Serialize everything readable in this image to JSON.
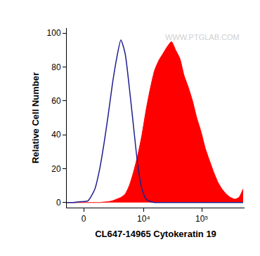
{
  "chart_data": {
    "type": "line",
    "xlabel": "CL647-14965 Cytokeratin 19",
    "ylabel": "Relative Cell Number",
    "annotations": [
      "WWW.PTGLAB.COM"
    ],
    "x": [
      -1360,
      -756,
      -211,
      317,
      870,
      1290,
      1700,
      2150,
      2650,
      3230,
      3900,
      4690,
      5590,
      6650,
      7920,
      9370,
      11100,
      13200,
      15500,
      18400,
      21700,
      25600,
      30300,
      35700,
      42200,
      49800,
      58900,
      69500,
      82100,
      96900,
      115000,
      135000,
      160000,
      189000,
      222000,
      263000,
      310000,
      367000,
      433000,
      511000
    ],
    "series": [
      {
        "type": "area",
        "color": "#ff0000",
        "values": [
          0,
          0,
          0,
          0,
          0,
          0,
          0.3,
          0.5,
          1,
          2,
          3,
          5,
          10,
          18,
          28,
          40,
          55,
          68,
          78,
          84,
          88,
          92,
          95,
          90,
          85,
          75,
          68,
          60,
          50,
          42,
          32,
          25,
          18,
          12,
          8,
          5,
          3,
          2,
          3,
          8
        ]
      },
      {
        "type": "line",
        "color": "#1f1f8f",
        "values": [
          0,
          0,
          0.5,
          1,
          8,
          20,
          35,
          52,
          70,
          85,
          96,
          88,
          68,
          45,
          22,
          8,
          2,
          0.5,
          0,
          0,
          0,
          0,
          0,
          0,
          0,
          0,
          0,
          0,
          0,
          0,
          0,
          0,
          0,
          0,
          0,
          0,
          0,
          0,
          0,
          0
        ]
      }
    ],
    "xlim": [
      -1360,
      540000
    ],
    "xticks": [
      0,
      {
        "value": 10000,
        "label": "10⁴"
      },
      {
        "value": 100000,
        "label": "10⁵"
      }
    ],
    "ylim": [
      -3,
      103
    ],
    "yticks": [
      0,
      20,
      40,
      60,
      80,
      100
    ],
    "grid": false
  }
}
